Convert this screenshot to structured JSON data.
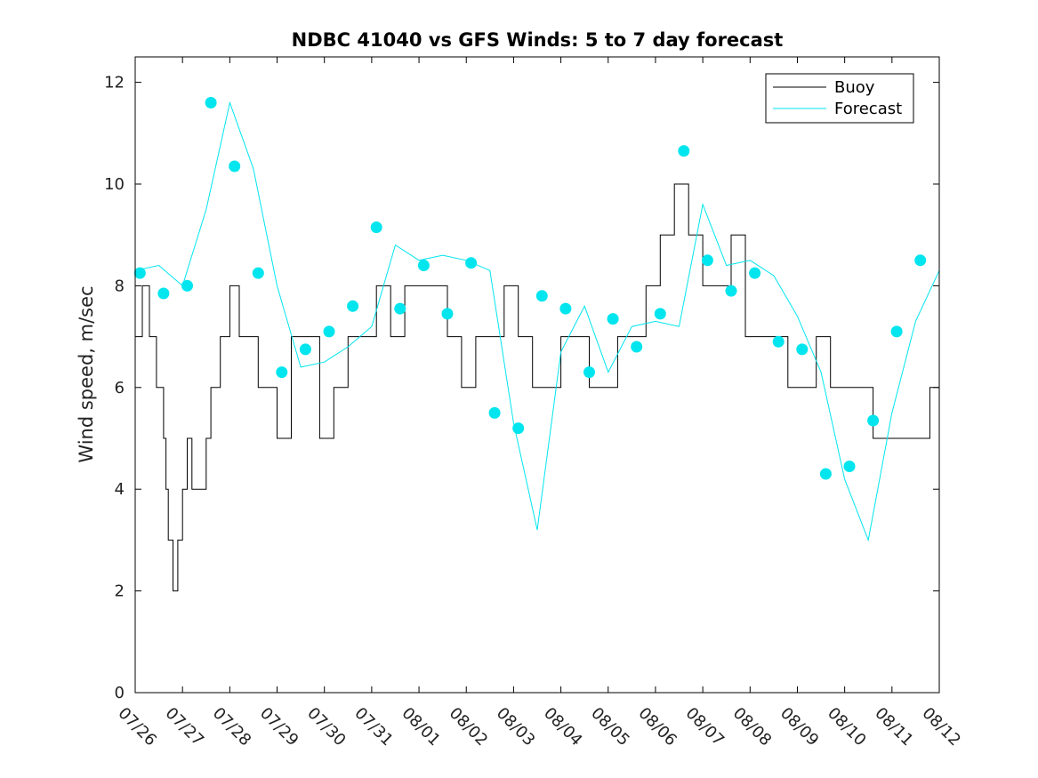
{
  "chart_data": {
    "type": "line",
    "title": "NDBC 41040 vs GFS Winds: 5 to 7 day forecast",
    "ylabel": "Wind speed, m/sec",
    "xlabel": "",
    "x_ticks": [
      "07/26",
      "07/27",
      "07/28",
      "07/29",
      "07/30",
      "07/31",
      "08/01",
      "08/02",
      "08/03",
      "08/04",
      "08/05",
      "08/06",
      "08/07",
      "08/08",
      "08/09",
      "08/10",
      "08/11",
      "08/12"
    ],
    "xlim": [
      "07/26",
      "08/12"
    ],
    "ylim": [
      0,
      12.5
    ],
    "y_ticks": [
      0,
      2,
      4,
      6,
      8,
      10,
      12
    ],
    "legend": {
      "placement": "top-right",
      "entries": [
        "Buoy",
        "Forecast"
      ]
    },
    "colors": {
      "buoy": "#000000",
      "forecast": "#00e5ee"
    },
    "series": [
      {
        "name": "Buoy",
        "color": "#000000",
        "x_days": [
          0.0,
          0.15,
          0.3,
          0.45,
          0.5,
          0.6,
          0.65,
          0.7,
          0.75,
          0.8,
          0.9,
          1.0,
          1.1,
          1.2,
          1.3,
          1.5,
          1.6,
          1.7,
          1.8,
          2.0,
          2.2,
          2.4,
          2.6,
          2.8,
          3.0,
          3.3,
          3.6,
          3.9,
          4.2,
          4.5,
          4.8,
          5.1,
          5.4,
          5.7,
          6.0,
          6.3,
          6.6,
          6.9,
          7.2,
          7.5,
          7.8,
          8.1,
          8.4,
          8.7,
          9.0,
          9.3,
          9.6,
          9.9,
          10.2,
          10.5,
          10.8,
          11.1,
          11.4,
          11.7,
          12.0,
          12.3,
          12.6,
          12.9,
          13.2,
          13.5,
          13.8,
          14.1,
          14.4,
          14.7,
          15.0,
          15.3,
          15.6,
          15.9,
          16.2,
          16.5,
          16.8,
          17.0
        ],
        "values": [
          7,
          8,
          7,
          6,
          6,
          5,
          4,
          3,
          3,
          2,
          3,
          4,
          5,
          4,
          4,
          5,
          6,
          6,
          7,
          8,
          7,
          7,
          6,
          6,
          5,
          7,
          7,
          5,
          6,
          7,
          7,
          8,
          7,
          8,
          8,
          8,
          7,
          6,
          7,
          7,
          8,
          7,
          6,
          6,
          7,
          7,
          6,
          6,
          7,
          7,
          8,
          9,
          10,
          9,
          8,
          8,
          9,
          7,
          7,
          7,
          6,
          6,
          7,
          6,
          6,
          6,
          5,
          5,
          5,
          5,
          6,
          8
        ]
      },
      {
        "name": "Forecast",
        "color": "#00e5ee",
        "x_days": [
          0.0,
          0.5,
          1.0,
          1.5,
          2.0,
          2.5,
          3.0,
          3.5,
          4.0,
          4.5,
          5.0,
          5.5,
          6.0,
          6.5,
          7.0,
          7.5,
          8.0,
          8.5,
          9.0,
          9.5,
          10.0,
          10.5,
          11.0,
          11.5,
          12.0,
          12.5,
          13.0,
          13.5,
          14.0,
          14.5,
          15.0,
          15.5,
          16.0,
          16.5,
          17.0
        ],
        "values": [
          8.3,
          8.4,
          8.0,
          9.5,
          11.6,
          10.3,
          8.0,
          6.4,
          6.5,
          6.8,
          7.2,
          8.8,
          8.5,
          8.6,
          8.5,
          8.3,
          5.3,
          3.2,
          6.7,
          7.6,
          6.3,
          7.2,
          7.3,
          7.2,
          9.6,
          8.4,
          8.5,
          8.2,
          7.4,
          6.3,
          4.2,
          3.0,
          5.5,
          7.3,
          8.3
        ]
      }
    ],
    "forecast_markers": {
      "x_days": [
        0.1,
        0.6,
        1.1,
        1.6,
        2.1,
        2.6,
        3.1,
        3.6,
        4.1,
        4.6,
        5.1,
        5.6,
        6.1,
        6.6,
        7.1,
        7.6,
        8.1,
        8.6,
        9.1,
        9.6,
        10.1,
        10.6,
        11.1,
        11.6,
        12.1,
        12.6,
        13.1,
        13.6,
        14.1,
        14.6,
        15.1,
        15.6,
        16.1,
        16.6
      ],
      "values": [
        8.25,
        7.85,
        8.0,
        11.6,
        10.35,
        8.25,
        6.3,
        6.75,
        7.1,
        7.6,
        9.15,
        7.55,
        8.4,
        7.45,
        8.45,
        5.5,
        5.2,
        7.8,
        7.55,
        6.3,
        7.35,
        6.8,
        7.45,
        10.65,
        8.5,
        7.9,
        8.25,
        6.9,
        6.75,
        4.3,
        4.45,
        5.35,
        7.1,
        8.5
      ]
    }
  }
}
